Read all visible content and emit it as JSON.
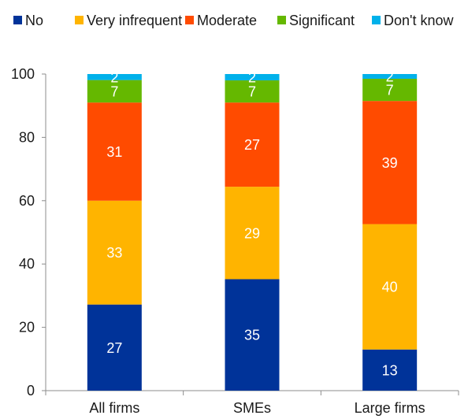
{
  "chart_data": {
    "type": "bar",
    "stacked": true,
    "categories": [
      "All firms",
      "SMEs",
      "Large firms"
    ],
    "series": [
      {
        "name": "No",
        "values": [
          27,
          35,
          13
        ],
        "color": "#003399"
      },
      {
        "name": "Very infrequent",
        "values": [
          33,
          29,
          40
        ],
        "color": "#FFB400"
      },
      {
        "name": "Moderate",
        "values": [
          31,
          27,
          39
        ],
        "color": "#FF4B00"
      },
      {
        "name": "Significant",
        "values": [
          7,
          7,
          7
        ],
        "color": "#65B800"
      },
      {
        "name": "Don't know",
        "values": [
          2,
          2,
          2
        ],
        "color": "#00B1EA"
      }
    ],
    "plotted_values": [
      [
        27.2,
        35.2,
        13.0
      ],
      [
        32.8,
        29.2,
        39.6
      ],
      [
        31.0,
        26.6,
        38.9
      ],
      [
        7.1,
        7.0,
        7.0
      ],
      [
        1.9,
        2.0,
        1.5
      ]
    ],
    "ylim": [
      0,
      100
    ],
    "yticks": [
      0,
      20,
      40,
      60,
      80,
      100
    ],
    "title": "",
    "xlabel": "",
    "ylabel": "",
    "legend_position": "top",
    "grid": false
  }
}
